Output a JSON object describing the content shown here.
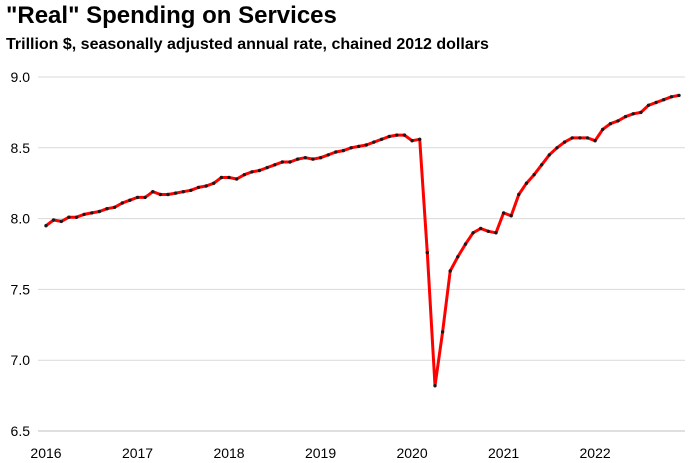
{
  "chart_data": {
    "type": "line",
    "title": "\"Real\" Spending on Services",
    "subtitle": "Trillion $, seasonally adjusted annual rate, chained 2012 dollars",
    "xlabel": "",
    "ylabel": "",
    "ylim": [
      6.5,
      9.0
    ],
    "yticks": [
      "9.0",
      "8.5",
      "8.0",
      "7.5",
      "7.0",
      "6.5"
    ],
    "xticks": [
      "2016",
      "2017",
      "2018",
      "2019",
      "2020",
      "2021",
      "2022"
    ],
    "x_range": [
      "2016-01",
      "2022-12"
    ],
    "grid": "horizontal",
    "line_color": "#ff0000",
    "marker_color": "#1a1a1a",
    "series": [
      {
        "x": [
          "2016-01",
          "2016-02",
          "2016-03",
          "2016-04",
          "2016-05",
          "2016-06",
          "2016-07",
          "2016-08",
          "2016-09",
          "2016-10",
          "2016-11",
          "2016-12",
          "2017-01",
          "2017-02",
          "2017-03",
          "2017-04",
          "2017-05",
          "2017-06",
          "2017-07",
          "2017-08",
          "2017-09",
          "2017-10",
          "2017-11",
          "2017-12",
          "2018-01",
          "2018-02",
          "2018-03",
          "2018-04",
          "2018-05",
          "2018-06",
          "2018-07",
          "2018-08",
          "2018-09",
          "2018-10",
          "2018-11",
          "2018-12",
          "2019-01",
          "2019-02",
          "2019-03",
          "2019-04",
          "2019-05",
          "2019-06",
          "2019-07",
          "2019-08",
          "2019-09",
          "2019-10",
          "2019-11",
          "2019-12",
          "2020-01",
          "2020-02",
          "2020-03",
          "2020-04",
          "2020-05",
          "2020-06",
          "2020-07",
          "2020-08",
          "2020-09",
          "2020-10",
          "2020-11",
          "2020-12",
          "2021-01",
          "2021-02",
          "2021-03",
          "2021-04",
          "2021-05",
          "2021-06",
          "2021-07",
          "2021-08",
          "2021-09",
          "2021-10",
          "2021-11",
          "2021-12",
          "2022-01",
          "2022-02",
          "2022-03",
          "2022-04",
          "2022-05",
          "2022-06",
          "2022-07",
          "2022-08",
          "2022-09",
          "2022-10",
          "2022-11",
          "2022-12"
        ],
        "values": [
          7.95,
          7.99,
          7.98,
          8.01,
          8.01,
          8.03,
          8.04,
          8.05,
          8.07,
          8.08,
          8.11,
          8.13,
          8.15,
          8.15,
          8.19,
          8.17,
          8.17,
          8.18,
          8.19,
          8.2,
          8.22,
          8.23,
          8.25,
          8.29,
          8.29,
          8.28,
          8.31,
          8.33,
          8.34,
          8.36,
          8.38,
          8.4,
          8.4,
          8.42,
          8.43,
          8.42,
          8.43,
          8.45,
          8.47,
          8.48,
          8.5,
          8.51,
          8.52,
          8.54,
          8.56,
          8.58,
          8.59,
          8.59,
          8.55,
          8.56,
          7.76,
          6.82,
          7.2,
          7.63,
          7.73,
          7.82,
          7.9,
          7.93,
          7.91,
          7.9,
          8.04,
          8.02,
          8.17,
          8.25,
          8.31,
          8.38,
          8.45,
          8.5,
          8.54,
          8.57,
          8.57,
          8.57,
          8.55,
          8.63,
          8.67,
          8.69,
          8.72,
          8.74,
          8.75,
          8.8,
          8.82,
          8.84,
          8.86,
          8.87
        ]
      }
    ]
  }
}
